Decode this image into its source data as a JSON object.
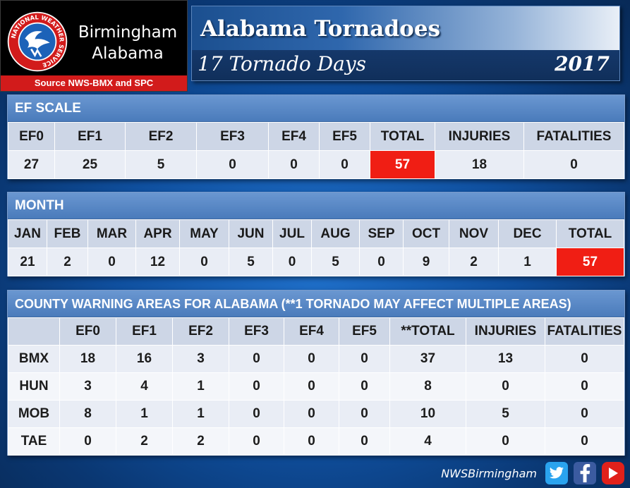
{
  "header": {
    "office_line1": "Birmingham",
    "office_line2": "Alabama",
    "source": "Source NWS-BMX and SPC",
    "seal_text": "NATIONAL WEATHER SERVICE",
    "title": "Alabama Tornadoes",
    "subtitle": "17 Tornado Days",
    "year": "2017"
  },
  "ef_scale": {
    "heading": "EF SCALE",
    "columns": [
      "EF0",
      "EF1",
      "EF2",
      "EF3",
      "EF4",
      "EF5",
      "TOTAL",
      "INJURIES",
      "FATALITIES"
    ],
    "values": [
      "27",
      "25",
      "5",
      "0",
      "0",
      "0",
      "57",
      "18",
      "0"
    ]
  },
  "month": {
    "heading": "MONTH",
    "columns": [
      "JAN",
      "FEB",
      "MAR",
      "APR",
      "MAY",
      "JUN",
      "JUL",
      "AUG",
      "SEP",
      "OCT",
      "NOV",
      "DEC",
      "TOTAL"
    ],
    "values": [
      "21",
      "2",
      "0",
      "12",
      "0",
      "5",
      "0",
      "5",
      "0",
      "9",
      "2",
      "1",
      "57"
    ]
  },
  "cwa": {
    "heading": "COUNTY WARNING AREAS FOR ALABAMA (**1 TORNADO MAY AFFECT MULTIPLE AREAS)",
    "columns": [
      "",
      "EF0",
      "EF1",
      "EF2",
      "EF3",
      "EF4",
      "EF5",
      "**TOTAL",
      "INJURIES",
      "FATALITIES"
    ],
    "rows": [
      {
        "area": "BMX",
        "values": [
          "18",
          "16",
          "3",
          "0",
          "0",
          "0",
          "37",
          "13",
          "0"
        ]
      },
      {
        "area": "HUN",
        "values": [
          "3",
          "4",
          "1",
          "0",
          "0",
          "0",
          "8",
          "0",
          "0"
        ]
      },
      {
        "area": "MOB",
        "values": [
          "8",
          "1",
          "1",
          "0",
          "0",
          "0",
          "10",
          "5",
          "0"
        ]
      },
      {
        "area": "TAE",
        "values": [
          "0",
          "2",
          "2",
          "0",
          "0",
          "0",
          "4",
          "0",
          "0"
        ]
      }
    ]
  },
  "footer": {
    "handle": "NWSBirmingham",
    "icons": [
      "twitter-icon",
      "facebook-icon",
      "youtube-icon"
    ]
  },
  "colors": {
    "highlight": "#f01e14",
    "panel_head": "#4a7bbb",
    "source_bar": "#d21b1b"
  }
}
